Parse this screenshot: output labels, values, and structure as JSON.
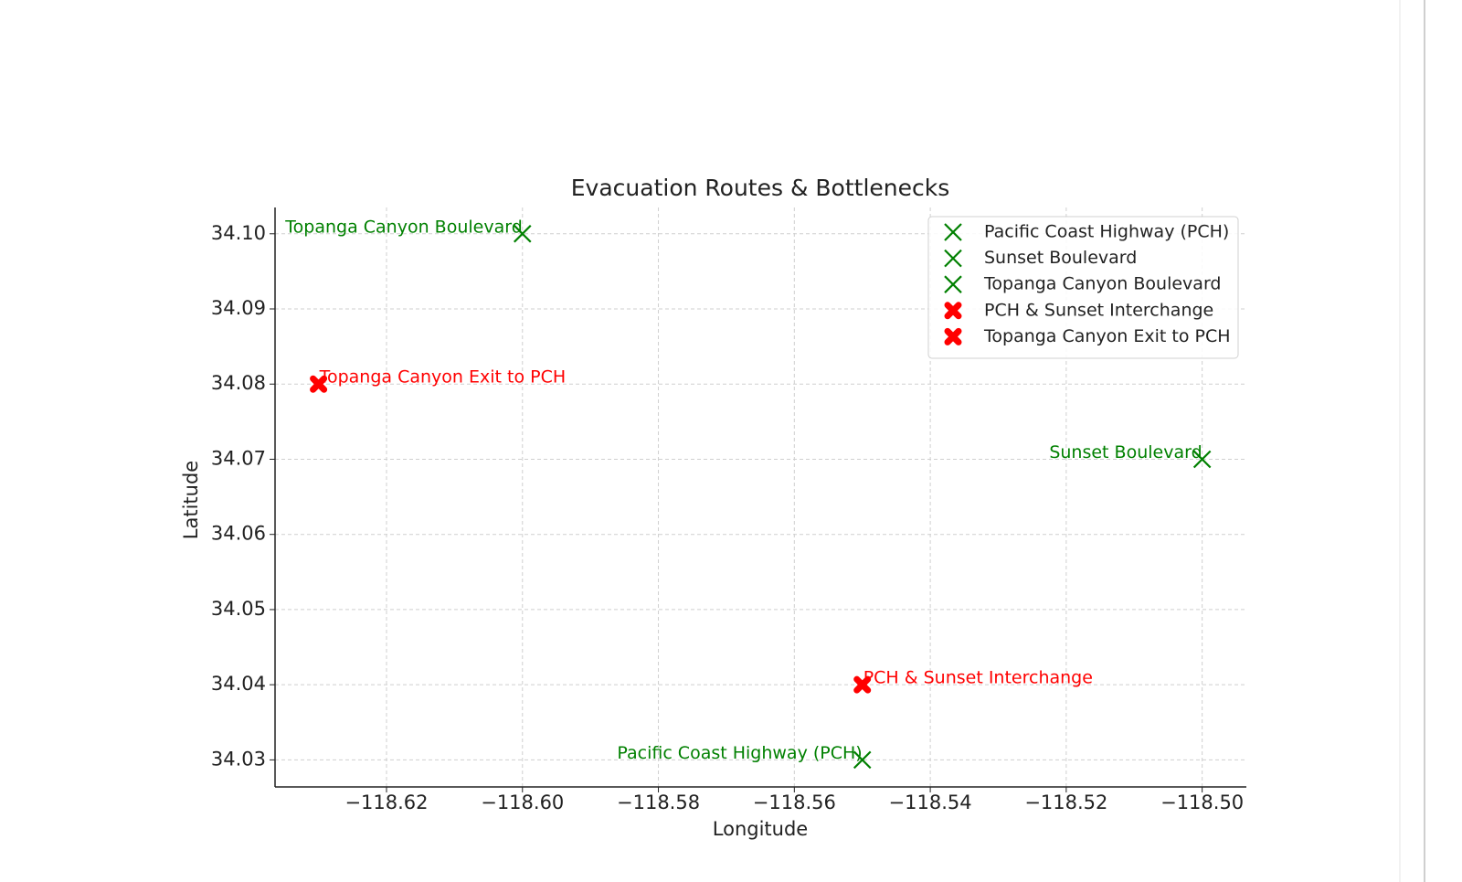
{
  "chart_data": {
    "type": "scatter",
    "title": "Evacuation Routes & Bottlenecks",
    "x_label": "Longitude",
    "y_label": "Latitude",
    "series": [
      {
        "name": "Pacific Coast Highway (PCH)",
        "color": "#008000",
        "marker": "x",
        "label_anchor": "end",
        "x": [
          -118.55
        ],
        "values": [
          34.03
        ]
      },
      {
        "name": "Sunset Boulevard",
        "color": "#008000",
        "marker": "x",
        "label_anchor": "end",
        "x": [
          -118.5
        ],
        "values": [
          34.07
        ]
      },
      {
        "name": "Topanga Canyon Boulevard",
        "color": "#008000",
        "marker": "x",
        "label_anchor": "end",
        "x": [
          -118.6
        ],
        "values": [
          34.1
        ]
      },
      {
        "name": "PCH & Sunset Interchange",
        "color": "#ff0000",
        "marker": "X",
        "label_anchor": "start",
        "x": [
          -118.55
        ],
        "values": [
          34.04
        ]
      },
      {
        "name": "Topanga Canyon Exit to PCH",
        "color": "#ff0000",
        "marker": "X",
        "label_anchor": "start",
        "x": [
          -118.63
        ],
        "values": [
          34.08
        ]
      }
    ],
    "xlim": [
      -118.6364,
      -118.4935
    ],
    "ylim": [
      34.0264,
      34.1035
    ],
    "xticks": [
      {
        "value": -118.62,
        "label": "−118.62"
      },
      {
        "value": -118.6,
        "label": "−118.60"
      },
      {
        "value": -118.58,
        "label": "−118.58"
      },
      {
        "value": -118.56,
        "label": "−118.56"
      },
      {
        "value": -118.54,
        "label": "−118.54"
      },
      {
        "value": -118.52,
        "label": "−118.52"
      },
      {
        "value": -118.5,
        "label": "−118.50"
      }
    ],
    "yticks": [
      34.03,
      34.04,
      34.05,
      34.06,
      34.07,
      34.08,
      34.09,
      {
        "value": 34.1,
        "label": "34.10"
      }
    ],
    "grid": true,
    "legend": "upper right"
  }
}
